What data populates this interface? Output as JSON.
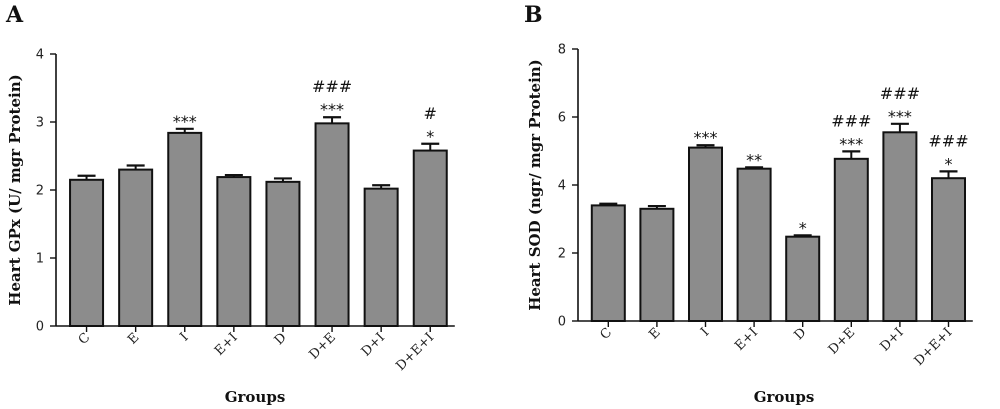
{
  "chart_data": [
    {
      "panel_label": "A",
      "type": "bar",
      "categories": [
        "C",
        "E",
        "I",
        "E+I",
        "D",
        "D+E",
        "D+I",
        "D+E+I"
      ],
      "values": [
        2.15,
        2.3,
        2.84,
        2.19,
        2.12,
        2.98,
        2.02,
        2.58
      ],
      "errors": [
        0.06,
        0.06,
        0.06,
        0.03,
        0.05,
        0.09,
        0.05,
        0.1
      ],
      "annotations": [
        "",
        "",
        "***",
        "",
        "",
        "###\n***",
        "",
        "#\n*"
      ],
      "ylabel": "Heart GPx (U/ mgr Protein)",
      "xlabel": "Groups",
      "ylim": [
        0,
        4
      ],
      "yticks": [
        0,
        1,
        2,
        3,
        4
      ],
      "bar_color": "#8c8c8c"
    },
    {
      "panel_label": "B",
      "type": "bar",
      "categories": [
        "C",
        "E",
        "I",
        "E+I",
        "D",
        "D+E",
        "D+I",
        "D+E+I"
      ],
      "values": [
        3.4,
        3.3,
        5.1,
        4.48,
        2.48,
        4.77,
        5.55,
        4.2
      ],
      "errors": [
        0.05,
        0.08,
        0.07,
        0.04,
        0.04,
        0.22,
        0.25,
        0.2
      ],
      "annotations": [
        "",
        "",
        "***",
        "**",
        "*",
        "###\n***",
        "###\n***",
        "###\n*"
      ],
      "ylabel": "Heart SOD (ngr/ mgr Protein)",
      "xlabel": "Groups",
      "ylim": [
        0,
        8
      ],
      "yticks": [
        0,
        2,
        4,
        6,
        8
      ],
      "bar_color": "#8c8c8c"
    }
  ]
}
